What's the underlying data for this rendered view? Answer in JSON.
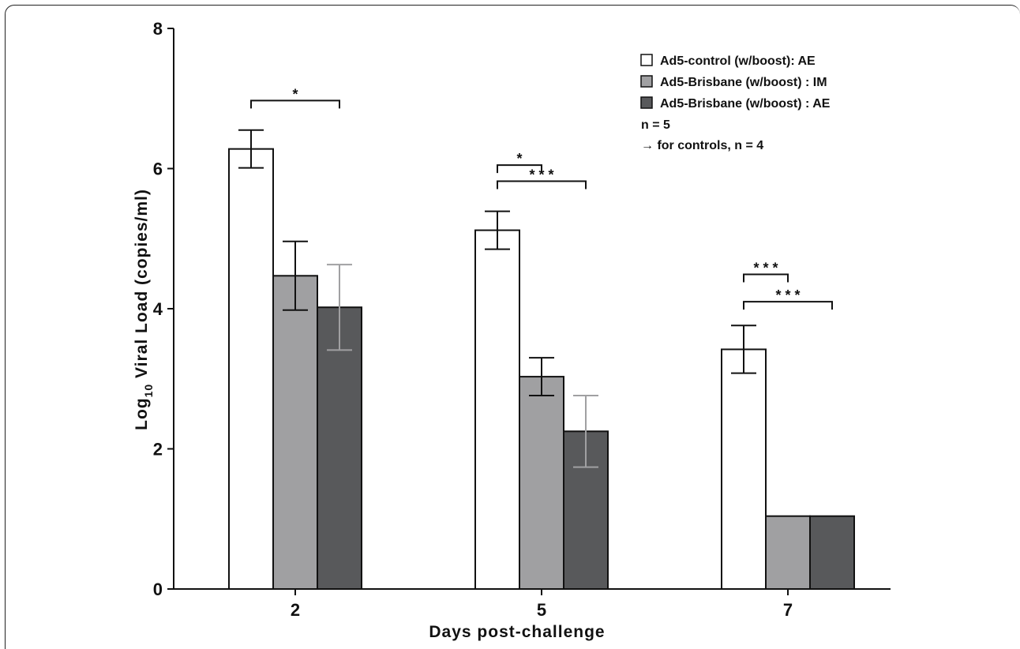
{
  "chart_data": {
    "type": "bar",
    "categories": [
      "2",
      "5",
      "7"
    ],
    "xlabel": "Days post-challenge",
    "ylabel": {
      "prefix": "Log",
      "sub": "10",
      "suffix": " Viral Load (copies/ml)"
    },
    "ylim": [
      0,
      8
    ],
    "yticks": [
      "0",
      "2",
      "4",
      "6",
      "8"
    ],
    "grid": false,
    "legend_position": "top-right",
    "series": [
      {
        "name": "Ad5-control (w/boost): AE",
        "values": [
          6.28,
          5.12,
          3.42
        ],
        "errors": [
          0.27,
          0.27,
          0.34
        ],
        "color": "#ffffff",
        "error_color": "#111111"
      },
      {
        "name": "Ad5-Brisbane (w/boost) : IM",
        "values": [
          4.47,
          3.03,
          1.04
        ],
        "errors": [
          0.49,
          0.27,
          0
        ],
        "color": "#a0a0a2",
        "error_color": "#111111"
      },
      {
        "name": "Ad5-Brisbane (w/boost) : AE",
        "values": [
          4.02,
          2.25,
          1.04
        ],
        "errors": [
          0.61,
          0.51,
          0
        ],
        "color": "#58595b",
        "error_color": "#a0a0a2"
      }
    ],
    "legend_notes": [
      "n = 5",
      "→ for controls, n = 4"
    ],
    "significance": [
      {
        "category": 0,
        "from_series": 0,
        "to_series": 2,
        "label": "*",
        "level": 6.97
      },
      {
        "category": 1,
        "from_series": 0,
        "to_series": 1,
        "label": "*",
        "level": 6.05
      },
      {
        "category": 1,
        "from_series": 0,
        "to_series": 2,
        "label": "* * *",
        "level": 5.82
      },
      {
        "category": 2,
        "from_series": 0,
        "to_series": 1,
        "label": "* * *",
        "level": 4.49
      },
      {
        "category": 2,
        "from_series": 0,
        "to_series": 2,
        "label": "* * *",
        "level": 4.1
      }
    ]
  }
}
